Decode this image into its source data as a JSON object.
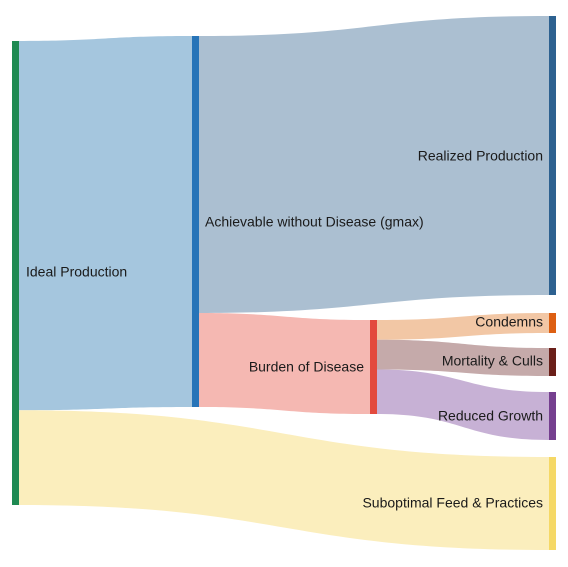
{
  "chart_data": {
    "type": "sankey",
    "nodes": [
      {
        "id": "ideal",
        "label": "Ideal Production",
        "color": "#1e8a52"
      },
      {
        "id": "achievable",
        "label": "Achievable without Disease (gmax)",
        "color": "#2774b8"
      },
      {
        "id": "realized",
        "label": "Realized Production",
        "color": "#2d6190"
      },
      {
        "id": "burden",
        "label": "Burden of Disease",
        "color": "#e34a3d"
      },
      {
        "id": "condemns",
        "label": "Condemns",
        "color": "#dd5f12"
      },
      {
        "id": "mortality",
        "label": "Mortality & Culls",
        "color": "#6a1f19"
      },
      {
        "id": "reduced",
        "label": "Reduced Growth",
        "color": "#753f8f"
      },
      {
        "id": "suboptimal",
        "label": "Suboptimal Feed & Practices",
        "color": "#f5d866"
      }
    ],
    "links": [
      {
        "source": "ideal",
        "target": "achievable",
        "value": 74,
        "color": "#a5c6de"
      },
      {
        "source": "ideal",
        "target": "suboptimal",
        "value": 19,
        "color": "#fbeebd"
      },
      {
        "source": "achievable",
        "target": "realized",
        "value": 56,
        "color": "#abbfd1"
      },
      {
        "source": "achievable",
        "target": "burden",
        "value": 19,
        "color": "#f5b8b2"
      },
      {
        "source": "burden",
        "target": "condemns",
        "value": 4,
        "color": "#f2c7a5"
      },
      {
        "source": "burden",
        "target": "mortality",
        "value": 6,
        "color": "#c5aaaa"
      },
      {
        "source": "burden",
        "target": "reduced",
        "value": 9,
        "color": "#c7b1d5"
      }
    ]
  }
}
